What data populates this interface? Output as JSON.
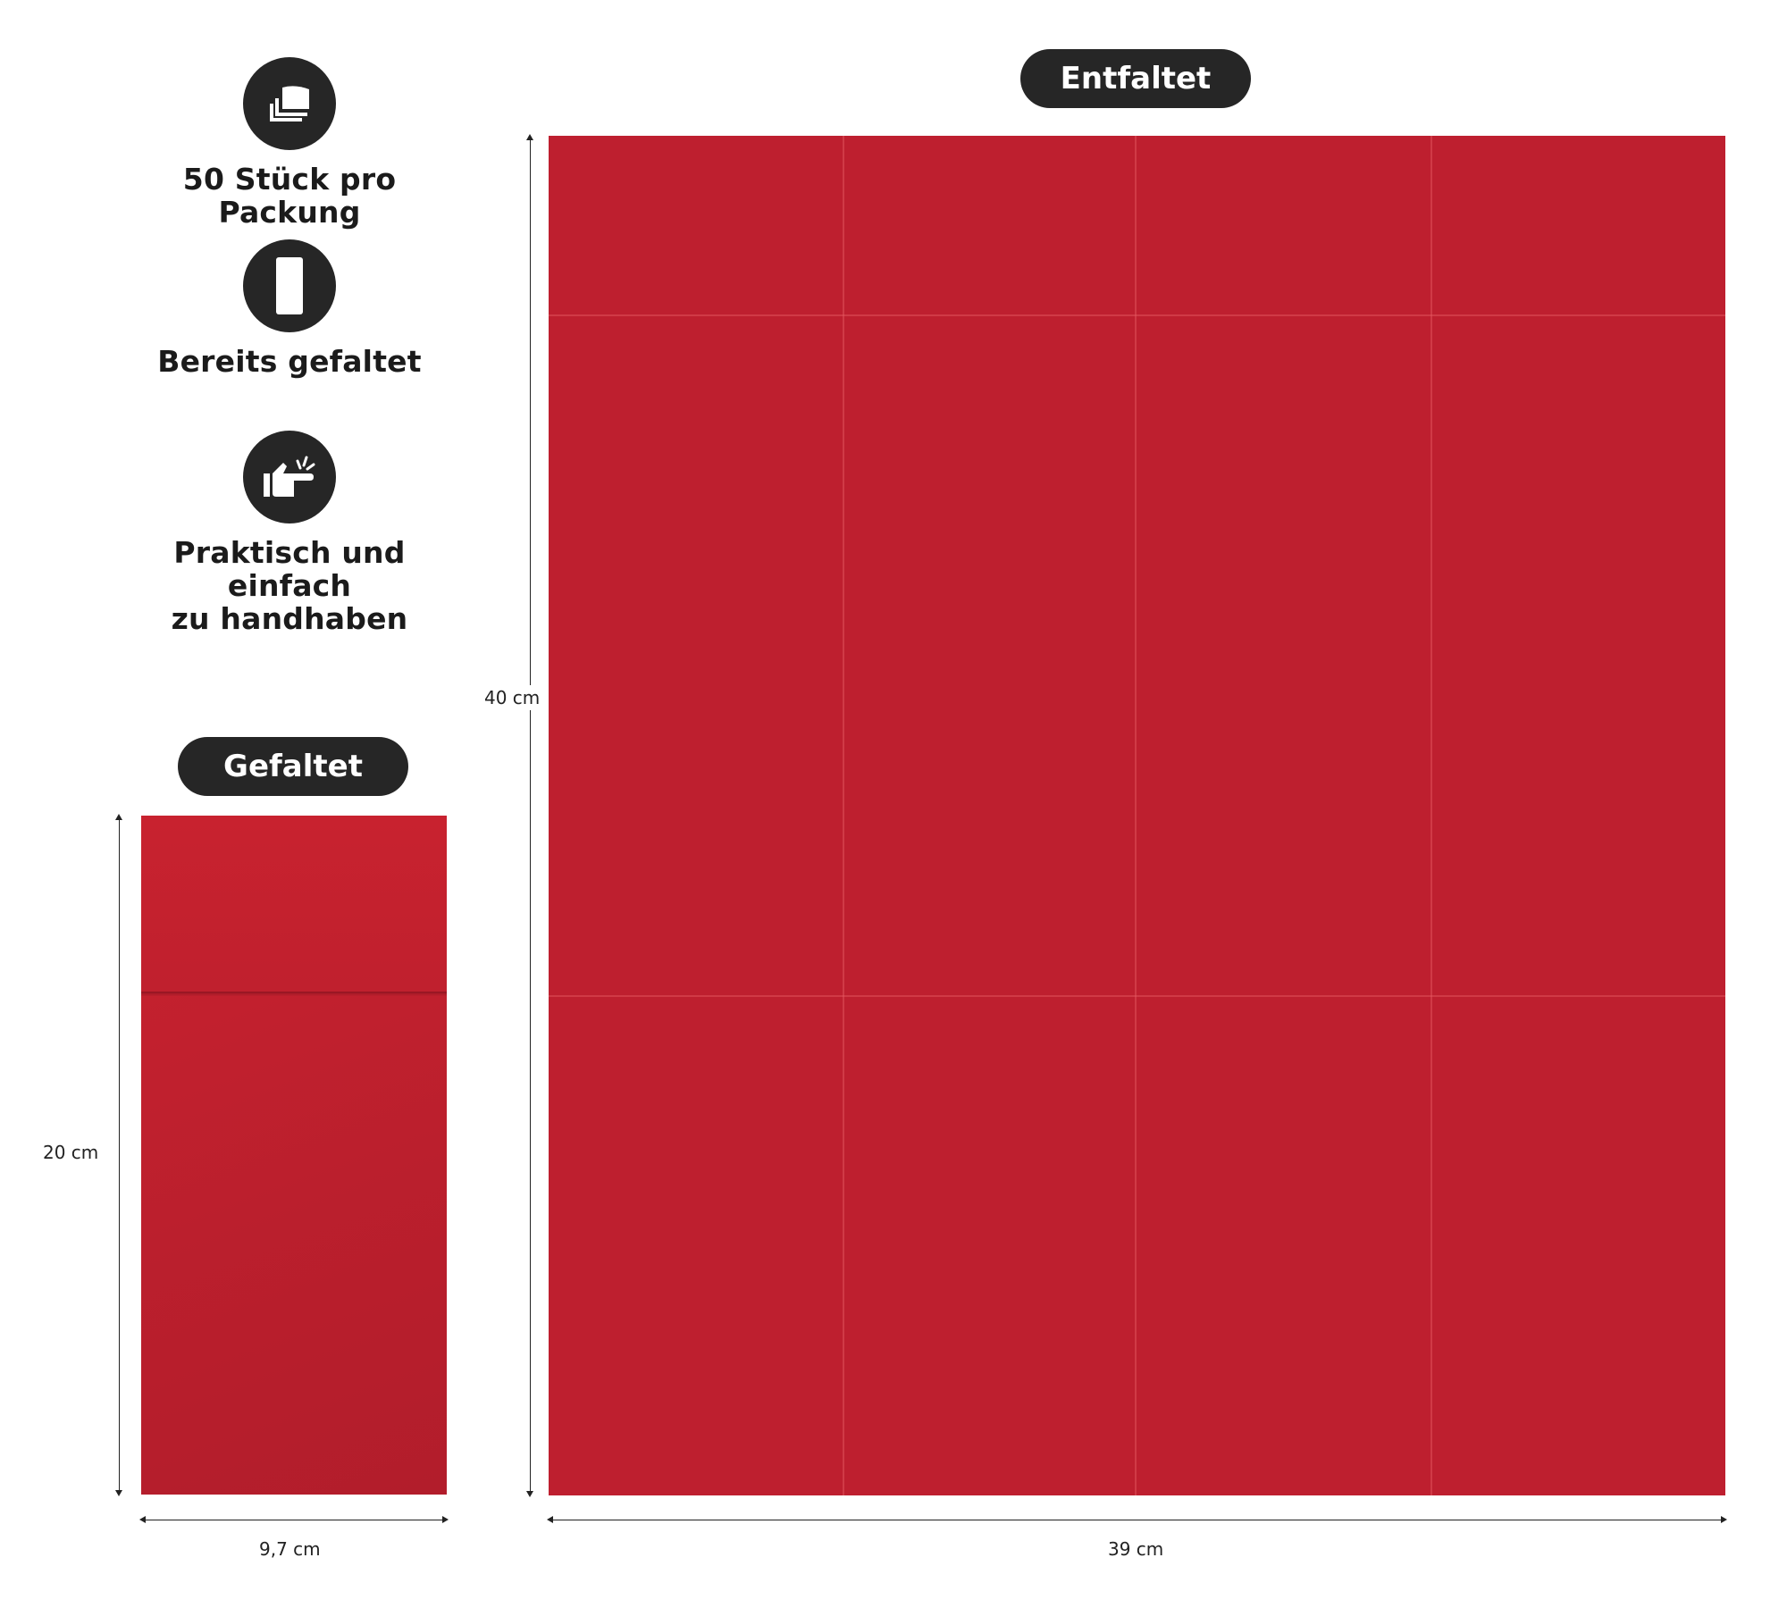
{
  "features": [
    {
      "icon": "stacked-napkins-icon",
      "label": "50 Stück pro Packung"
    },
    {
      "icon": "folded-napkin-icon",
      "label": "Bereits gefaltet"
    },
    {
      "icon": "hand-pointing-icon",
      "label_line1": "Praktisch und einfach",
      "label_line2": "zu handhaben"
    }
  ],
  "folded": {
    "title": "Gefaltet",
    "height_label": "20 cm",
    "width_label": "9,7 cm"
  },
  "unfolded": {
    "title": "Entfaltet",
    "height_label": "40 cm",
    "width_label": "39 cm"
  },
  "colors": {
    "napkin_red": "#be1f2f",
    "badge_dark": "#262626"
  }
}
